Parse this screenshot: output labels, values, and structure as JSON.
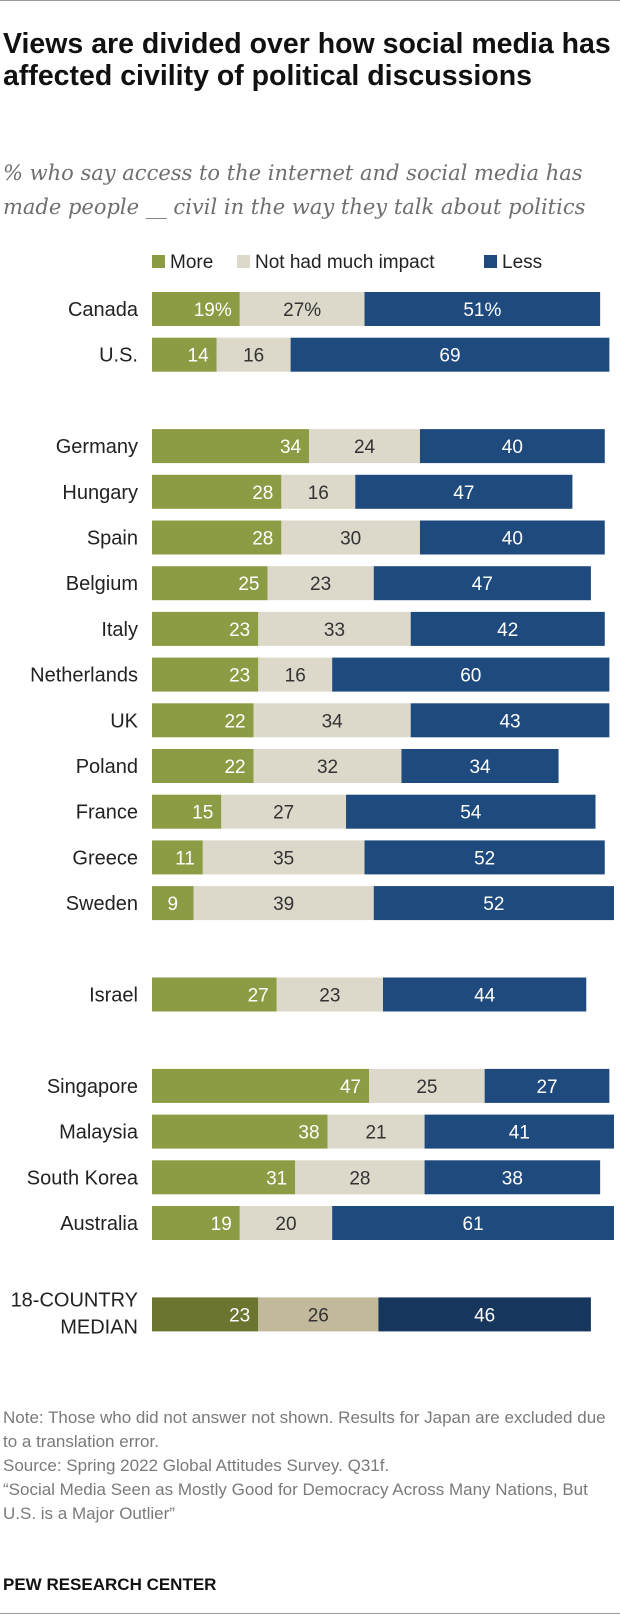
{
  "title": "Views are divided over how social media has affected civility of political discussions",
  "subtitle": "% who say access to the internet and social media has made people __ civil in the way they talk about politics",
  "colors": {
    "more": "#8c9c44",
    "no_impact": "#dcd8ca",
    "less": "#1f4a7e",
    "median_more": "#6b7530",
    "median_no_impact": "#c2b99c",
    "median_less": "#16365d",
    "dark_text": "#ffffff",
    "light_text": "#333333"
  },
  "chart_data": {
    "type": "bar",
    "orientation": "horizontal",
    "stacked": true,
    "legend_position": "top",
    "series_names": [
      "More",
      "Not had much impact",
      "Less"
    ],
    "rows": [
      {
        "label": "Canada",
        "group": 0,
        "values": [
          19,
          27,
          51
        ],
        "display": [
          "19%",
          "27%",
          "51%"
        ]
      },
      {
        "label": "U.S.",
        "group": 0,
        "values": [
          14,
          16,
          69
        ],
        "display": [
          "14",
          "16",
          "69"
        ]
      },
      {
        "label": "Germany",
        "group": 1,
        "values": [
          34,
          24,
          40
        ],
        "display": [
          "34",
          "24",
          "40"
        ]
      },
      {
        "label": "Hungary",
        "group": 1,
        "values": [
          28,
          16,
          47
        ],
        "display": [
          "28",
          "16",
          "47"
        ]
      },
      {
        "label": "Spain",
        "group": 1,
        "values": [
          28,
          30,
          40
        ],
        "display": [
          "28",
          "30",
          "40"
        ]
      },
      {
        "label": "Belgium",
        "group": 1,
        "values": [
          25,
          23,
          47
        ],
        "display": [
          "25",
          "23",
          "47"
        ]
      },
      {
        "label": "Italy",
        "group": 1,
        "values": [
          23,
          33,
          42
        ],
        "display": [
          "23",
          "33",
          "42"
        ]
      },
      {
        "label": "Netherlands",
        "group": 1,
        "values": [
          23,
          16,
          60
        ],
        "display": [
          "23",
          "16",
          "60"
        ]
      },
      {
        "label": "UK",
        "group": 1,
        "values": [
          22,
          34,
          43
        ],
        "display": [
          "22",
          "34",
          "43"
        ]
      },
      {
        "label": "Poland",
        "group": 1,
        "values": [
          22,
          32,
          34
        ],
        "display": [
          "22",
          "32",
          "34"
        ]
      },
      {
        "label": "France",
        "group": 1,
        "values": [
          15,
          27,
          54
        ],
        "display": [
          "15",
          "27",
          "54"
        ]
      },
      {
        "label": "Greece",
        "group": 1,
        "values": [
          11,
          35,
          52
        ],
        "display": [
          "11",
          "35",
          "52"
        ]
      },
      {
        "label": "Sweden",
        "group": 1,
        "values": [
          9,
          39,
          52
        ],
        "display": [
          "9",
          "39",
          "52"
        ]
      },
      {
        "label": "Israel",
        "group": 2,
        "values": [
          27,
          23,
          44
        ],
        "display": [
          "27",
          "23",
          "44"
        ]
      },
      {
        "label": "Singapore",
        "group": 3,
        "values": [
          47,
          25,
          27
        ],
        "display": [
          "47",
          "25",
          "27"
        ]
      },
      {
        "label": "Malaysia",
        "group": 3,
        "values": [
          38,
          21,
          41
        ],
        "display": [
          "38",
          "21",
          "41"
        ]
      },
      {
        "label": "South Korea",
        "group": 3,
        "values": [
          31,
          28,
          38
        ],
        "display": [
          "31",
          "28",
          "38"
        ]
      },
      {
        "label": "Australia",
        "group": 3,
        "values": [
          19,
          20,
          61
        ],
        "display": [
          "19",
          "20",
          "61"
        ]
      },
      {
        "label": "18-COUNTRY MEDIAN",
        "label_lines": [
          "18-COUNTRY",
          "MEDIAN"
        ],
        "group": 4,
        "median": true,
        "values": [
          23,
          26,
          46
        ],
        "display": [
          "23",
          "26",
          "46"
        ]
      }
    ]
  },
  "notes": [
    "Note: Those who did not answer not shown. Results for Japan are excluded due to a translation error.",
    "Source: Spring 2022 Global Attitudes Survey. Q31f.",
    "“Social Media Seen as Mostly Good for Democracy Across Many Nations, But U.S. is a Major Outlier”"
  ],
  "brand": "PEW RESEARCH CENTER"
}
